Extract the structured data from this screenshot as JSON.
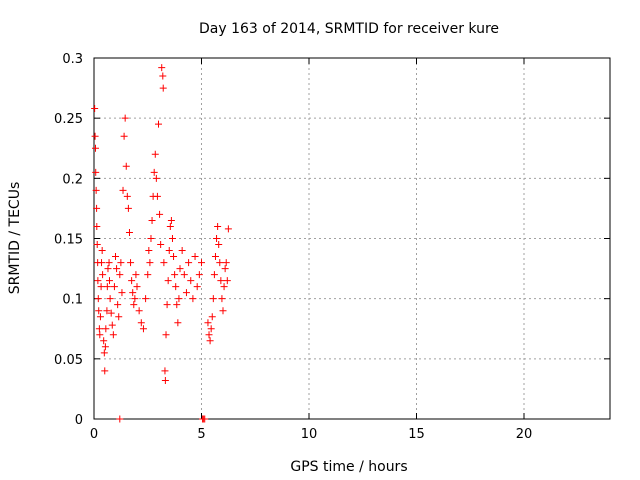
{
  "chart_data": {
    "type": "scatter",
    "title": "Day 163 of 2014, SRMTID for receiver kure",
    "xlabel": "GPS time / hours",
    "ylabel": "SRMTID / TECUs",
    "xlim": [
      0,
      24
    ],
    "ylim": [
      0,
      0.3
    ],
    "xticks": [
      "0",
      "5",
      "10",
      "15",
      "20"
    ],
    "xtick_values": [
      0,
      5,
      10,
      15,
      20
    ],
    "yticks": [
      "0",
      "0.05",
      "0.1",
      "0.15",
      "0.2",
      "0.25",
      "0.3"
    ],
    "ytick_values": [
      0,
      0.05,
      0.1,
      0.15,
      0.2,
      0.25,
      0.3
    ],
    "grid": true,
    "marker": "plus",
    "color": "#ff0000",
    "series": [
      {
        "name": "SRMTID",
        "points": [
          [
            0.03,
            0.258
          ],
          [
            0.05,
            0.235
          ],
          [
            0.07,
            0.225
          ],
          [
            0.08,
            0.205
          ],
          [
            0.1,
            0.19
          ],
          [
            0.12,
            0.175
          ],
          [
            0.13,
            0.16
          ],
          [
            0.15,
            0.145
          ],
          [
            0.17,
            0.13
          ],
          [
            0.18,
            0.115
          ],
          [
            0.2,
            0.1
          ],
          [
            0.22,
            0.09
          ],
          [
            0.25,
            0.075
          ],
          [
            0.27,
            0.07
          ],
          [
            0.3,
            0.085
          ],
          [
            0.33,
            0.11
          ],
          [
            0.35,
            0.13
          ],
          [
            0.38,
            0.14
          ],
          [
            0.4,
            0.12
          ],
          [
            0.45,
            0.065
          ],
          [
            0.48,
            0.055
          ],
          [
            0.5,
            0.04
          ],
          [
            0.53,
            0.06
          ],
          [
            0.55,
            0.075
          ],
          [
            0.6,
            0.09
          ],
          [
            0.62,
            0.11
          ],
          [
            0.65,
            0.125
          ],
          [
            0.7,
            0.13
          ],
          [
            0.72,
            0.115
          ],
          [
            0.75,
            0.1
          ],
          [
            0.8,
            0.088
          ],
          [
            0.85,
            0.078
          ],
          [
            0.9,
            0.07
          ],
          [
            0.95,
            0.11
          ],
          [
            1.0,
            0.135
          ],
          [
            1.05,
            0.125
          ],
          [
            1.1,
            0.095
          ],
          [
            1.15,
            0.085
          ],
          [
            1.2,
            0.12
          ],
          [
            1.25,
            0.13
          ],
          [
            1.3,
            0.105
          ],
          [
            1.35,
            0.19
          ],
          [
            1.4,
            0.235
          ],
          [
            1.45,
            0.25
          ],
          [
            1.5,
            0.21
          ],
          [
            1.55,
            0.185
          ],
          [
            1.6,
            0.175
          ],
          [
            1.65,
            0.155
          ],
          [
            1.7,
            0.13
          ],
          [
            1.75,
            0.115
          ],
          [
            1.8,
            0.105
          ],
          [
            1.85,
            0.095
          ],
          [
            1.9,
            0.1
          ],
          [
            1.95,
            0.12
          ],
          [
            2.0,
            0.11
          ],
          [
            2.1,
            0.09
          ],
          [
            2.2,
            0.08
          ],
          [
            2.3,
            0.075
          ],
          [
            2.4,
            0.1
          ],
          [
            2.5,
            0.12
          ],
          [
            2.55,
            0.14
          ],
          [
            2.6,
            0.13
          ],
          [
            2.65,
            0.15
          ],
          [
            2.7,
            0.165
          ],
          [
            2.75,
            0.185
          ],
          [
            2.8,
            0.205
          ],
          [
            2.85,
            0.22
          ],
          [
            2.9,
            0.2
          ],
          [
            2.95,
            0.185
          ],
          [
            3.0,
            0.245
          ],
          [
            3.05,
            0.17
          ],
          [
            3.1,
            0.145
          ],
          [
            3.15,
            0.292
          ],
          [
            3.2,
            0.285
          ],
          [
            3.22,
            0.275
          ],
          [
            3.25,
            0.13
          ],
          [
            3.3,
            0.04
          ],
          [
            3.32,
            0.032
          ],
          [
            3.35,
            0.07
          ],
          [
            3.4,
            0.095
          ],
          [
            3.45,
            0.115
          ],
          [
            3.5,
            0.14
          ],
          [
            3.55,
            0.16
          ],
          [
            3.6,
            0.165
          ],
          [
            3.65,
            0.15
          ],
          [
            3.7,
            0.135
          ],
          [
            3.75,
            0.12
          ],
          [
            3.8,
            0.11
          ],
          [
            3.85,
            0.095
          ],
          [
            3.9,
            0.08
          ],
          [
            3.95,
            0.1
          ],
          [
            4.0,
            0.125
          ],
          [
            4.1,
            0.14
          ],
          [
            4.2,
            0.12
          ],
          [
            4.3,
            0.105
          ],
          [
            4.4,
            0.13
          ],
          [
            4.5,
            0.115
          ],
          [
            4.6,
            0.1
          ],
          [
            4.7,
            0.135
          ],
          [
            4.8,
            0.11
          ],
          [
            4.9,
            0.12
          ],
          [
            5.0,
            0.13
          ],
          [
            5.05,
            0.0
          ],
          [
            5.1,
            0.0
          ],
          [
            5.15,
            0.0
          ],
          [
            5.3,
            0.08
          ],
          [
            5.35,
            0.07
          ],
          [
            5.4,
            0.065
          ],
          [
            5.45,
            0.075
          ],
          [
            5.5,
            0.085
          ],
          [
            5.55,
            0.1
          ],
          [
            5.6,
            0.12
          ],
          [
            5.65,
            0.135
          ],
          [
            5.7,
            0.15
          ],
          [
            5.75,
            0.16
          ],
          [
            5.8,
            0.145
          ],
          [
            5.85,
            0.13
          ],
          [
            5.9,
            0.115
          ],
          [
            5.95,
            0.1
          ],
          [
            6.0,
            0.09
          ],
          [
            6.05,
            0.11
          ],
          [
            6.1,
            0.125
          ],
          [
            6.15,
            0.13
          ],
          [
            6.2,
            0.115
          ],
          [
            6.25,
            0.158
          ],
          [
            1.2,
            0.0
          ]
        ]
      }
    ]
  }
}
